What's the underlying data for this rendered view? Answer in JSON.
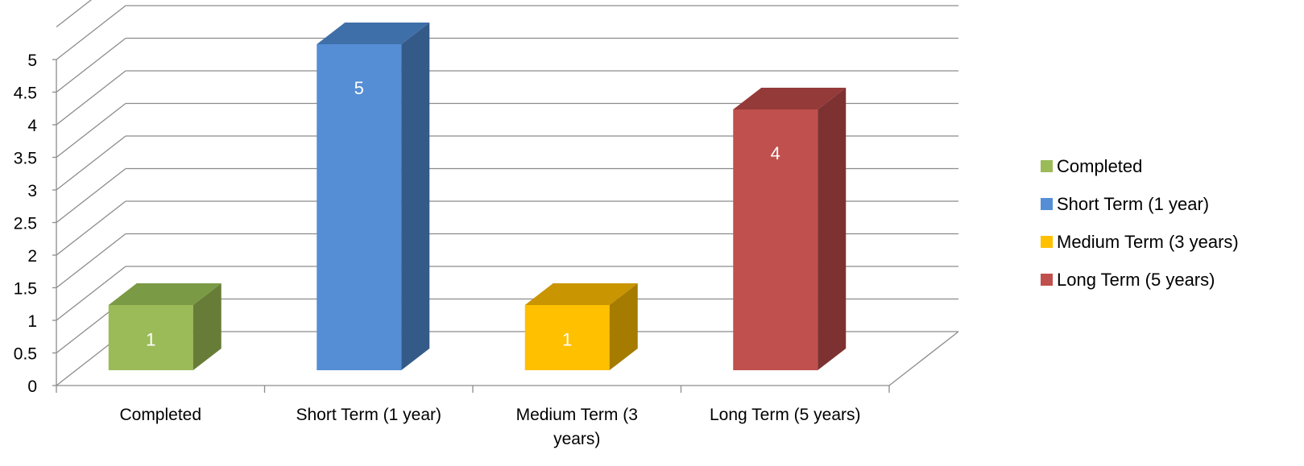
{
  "chart_data": {
    "type": "bar",
    "title": "",
    "xlabel": "",
    "ylabel": "",
    "ylim": [
      0,
      5
    ],
    "y_ticks": [
      "0",
      "0.5",
      "1",
      "1.5",
      "2",
      "2.5",
      "3",
      "3.5",
      "4",
      "4.5",
      "5"
    ],
    "grid": true,
    "style": "3d-column",
    "legend_position": "right",
    "categories": [
      {
        "label": "Completed",
        "lines": [
          "Completed"
        ]
      },
      {
        "label": "Short Term (1 year)",
        "lines": [
          "Short Term (1 year)"
        ]
      },
      {
        "label": "Medium Term (3 years)",
        "lines": [
          "Medium Term (3",
          "years)"
        ]
      },
      {
        "label": "Long Term (5 years)",
        "lines": [
          "Long Term (5 years)"
        ]
      }
    ],
    "series": [
      {
        "name": "Completed",
        "category_index": 0,
        "value": 1,
        "data_label": "1",
        "color": "#9bbb59",
        "side_color": "#677d37",
        "top_color": "#7a9a45"
      },
      {
        "name": "Short Term (1 year)",
        "category_index": 1,
        "value": 5,
        "data_label": "5",
        "color": "#558ed5",
        "side_color": "#345b88",
        "top_color": "#3f6fa8"
      },
      {
        "name": "Medium Term (3 years)",
        "category_index": 2,
        "value": 1,
        "data_label": "1",
        "color": "#ffc000",
        "side_color": "#a57b00",
        "top_color": "#c99500"
      },
      {
        "name": "Long Term (5 years)",
        "category_index": 3,
        "value": 4,
        "data_label": "4",
        "color": "#c0504d",
        "side_color": "#7d3231",
        "top_color": "#943a38"
      }
    ]
  }
}
